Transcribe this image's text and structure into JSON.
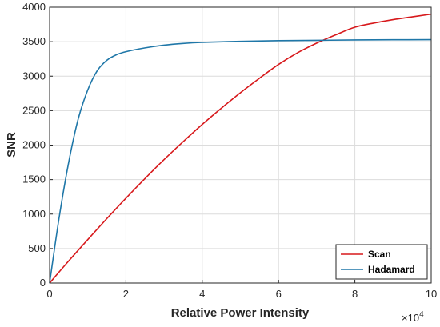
{
  "chart_data": {
    "type": "line",
    "title": "",
    "xlabel": "Relative Power Intensity",
    "ylabel": "SNR",
    "x_exponent_label": "×10",
    "x_exponent_power": "4",
    "xlim": [
      0,
      10
    ],
    "ylim": [
      0,
      4000
    ],
    "x_ticks": [
      "0",
      "2",
      "4",
      "6",
      "8",
      "10"
    ],
    "y_ticks": [
      "0",
      "500",
      "1000",
      "1500",
      "2000",
      "2500",
      "3000",
      "3500",
      "4000"
    ],
    "grid": true,
    "legend_position": "bottom-right",
    "series": [
      {
        "name": "Scan",
        "color": "#d7191c",
        "x": [
          0,
          0.5,
          1,
          1.5,
          2,
          2.5,
          3,
          3.5,
          4,
          4.5,
          5,
          5.5,
          6,
          6.5,
          7,
          7.5,
          8,
          8.5,
          9,
          9.5,
          10
        ],
        "y": [
          0,
          320,
          630,
          935,
          1230,
          1515,
          1790,
          2050,
          2300,
          2535,
          2760,
          2970,
          3170,
          3340,
          3480,
          3600,
          3710,
          3770,
          3820,
          3860,
          3900
        ]
      },
      {
        "name": "Hadamard",
        "color": "#1f77a8",
        "x": [
          0,
          0.25,
          0.5,
          0.75,
          1,
          1.25,
          1.5,
          1.75,
          2,
          2.5,
          3,
          3.5,
          4,
          5,
          6,
          7,
          8,
          9,
          10
        ],
        "y": [
          0,
          950,
          1750,
          2380,
          2800,
          3080,
          3230,
          3310,
          3355,
          3410,
          3450,
          3475,
          3490,
          3505,
          3515,
          3520,
          3525,
          3528,
          3530
        ]
      }
    ]
  }
}
